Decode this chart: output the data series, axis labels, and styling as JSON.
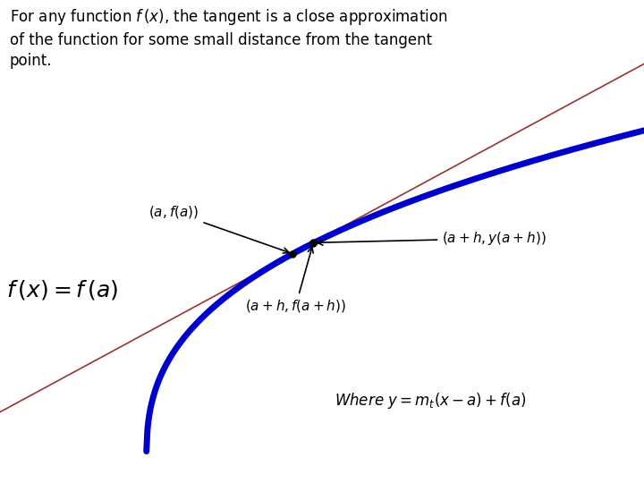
{
  "background_color": "#ffffff",
  "title_text": "For any function $f\\,(x)$, the tangent is a close approximation\nof the function for some small distance from the tangent\npoint.",
  "formula_text": "$f\\,(x)= f\\,(a)$",
  "label_a": "$(a, f(a))$",
  "label_ah_tangent": "$(a+h, y(a+h))$",
  "label_ah_func": "$(a+h, f(a+h))$",
  "where_text": "Where $y = m_t(x - a) + f(a)$",
  "curve_color": "#0000cc",
  "tangent_color": "#993333",
  "curve_lw": 5.0,
  "tangent_lw": 1.2,
  "x_range": [
    -0.5,
    10.5
  ],
  "y_range": [
    -6.0,
    5.5
  ]
}
